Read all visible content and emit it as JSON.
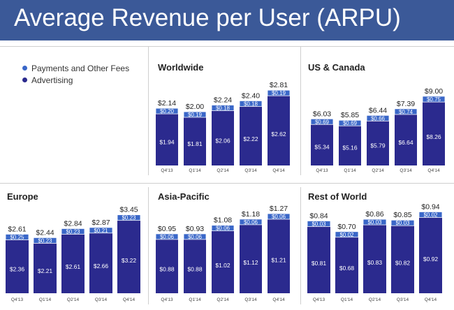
{
  "header": {
    "title": "Average Revenue per User (ARPU)"
  },
  "colors": {
    "header": "#3b5998",
    "advertising": "#2b2a8e",
    "payments": "#3a67c8",
    "text": "#222222"
  },
  "legend": {
    "items": [
      {
        "label": "Payments and Other Fees",
        "color": "#3a67c8"
      },
      {
        "label": "Advertising",
        "color": "#2b2a8e"
      }
    ]
  },
  "chart_data": [
    {
      "type": "bar",
      "stacked": true,
      "title": "Worldwide",
      "categories": [
        "Q4'13",
        "Q1'14",
        "Q2'14",
        "Q3'14",
        "Q4'14"
      ],
      "series": [
        {
          "name": "Advertising",
          "values": [
            1.94,
            1.81,
            2.06,
            2.22,
            2.62
          ],
          "labels": [
            "$1.94",
            "$1.81",
            "$2.06",
            "$2.22",
            "$2.62"
          ]
        },
        {
          "name": "Payments and Other Fees",
          "values": [
            0.2,
            0.19,
            0.18,
            0.18,
            0.19
          ],
          "labels": [
            "$0.20",
            "$0.19",
            "$0.18",
            "$0.18",
            "$0.19"
          ]
        }
      ],
      "totals": [
        "$2.14",
        "$2.00",
        "$2.24",
        "$2.40",
        "$2.81"
      ]
    },
    {
      "type": "bar",
      "stacked": true,
      "title": "US & Canada",
      "categories": [
        "Q4'13",
        "Q1'14",
        "Q2'14",
        "Q3'14",
        "Q4'14"
      ],
      "series": [
        {
          "name": "Advertising",
          "values": [
            5.34,
            5.16,
            5.79,
            6.64,
            8.26
          ],
          "labels": [
            "$5.34",
            "$5.16",
            "$5.79",
            "$6.64",
            "$8.26"
          ]
        },
        {
          "name": "Payments and Other Fees",
          "values": [
            0.69,
            0.69,
            0.66,
            0.74,
            0.75
          ],
          "labels": [
            "$0.69",
            "$0.69",
            "$0.66",
            "$0.74",
            "$0.75"
          ]
        }
      ],
      "totals": [
        "$6.03",
        "$5.85",
        "$6.44",
        "$7.39",
        "$9.00"
      ]
    },
    {
      "type": "bar",
      "stacked": true,
      "title": "Europe",
      "categories": [
        "Q4'13",
        "Q1'14",
        "Q2'14",
        "Q3'14",
        "Q4'14"
      ],
      "series": [
        {
          "name": "Advertising",
          "values": [
            2.36,
            2.21,
            2.61,
            2.66,
            3.22
          ],
          "labels": [
            "$2.36",
            "$2.21",
            "$2.61",
            "$2.66",
            "$3.22"
          ]
        },
        {
          "name": "Payments and Other Fees",
          "values": [
            0.25,
            0.23,
            0.23,
            0.21,
            0.23
          ],
          "labels": [
            "$0.25",
            "$0.23",
            "$0.23",
            "$0.21",
            "$0.23"
          ]
        }
      ],
      "totals": [
        "$2.61",
        "$2.44",
        "$2.84",
        "$2.87",
        "$3.45"
      ]
    },
    {
      "type": "bar",
      "stacked": true,
      "title": "Asia-Pacific",
      "categories": [
        "Q4'13",
        "Q1'14",
        "Q2'14",
        "Q3'14",
        "Q4'14"
      ],
      "series": [
        {
          "name": "Advertising",
          "values": [
            0.88,
            0.88,
            1.02,
            1.12,
            1.21
          ],
          "labels": [
            "$0.88",
            "$0.88",
            "$1.02",
            "$1.12",
            "$1.21"
          ]
        },
        {
          "name": "Payments and Other Fees",
          "values": [
            0.06,
            0.06,
            0.06,
            0.06,
            0.06
          ],
          "labels": [
            "$0.06",
            "$0.06",
            "$0.06",
            "$0.06",
            "$0.06"
          ]
        }
      ],
      "totals": [
        "$0.95",
        "$0.93",
        "$1.08",
        "$1.18",
        "$1.27"
      ]
    },
    {
      "type": "bar",
      "stacked": true,
      "title": "Rest of World",
      "categories": [
        "Q4'13",
        "Q1'14",
        "Q2'14",
        "Q3'14",
        "Q4'14"
      ],
      "series": [
        {
          "name": "Advertising",
          "values": [
            0.81,
            0.68,
            0.83,
            0.82,
            0.92
          ],
          "labels": [
            "$0.81",
            "$0.68",
            "$0.83",
            "$0.82",
            "$0.92"
          ]
        },
        {
          "name": "Payments and Other Fees",
          "values": [
            0.03,
            0.02,
            0.03,
            0.03,
            0.02
          ],
          "labels": [
            "$0.03",
            "$0.02",
            "$0.03",
            "$0.03",
            "$0.02"
          ]
        }
      ],
      "totals": [
        "$0.84",
        "$0.70",
        "$0.86",
        "$0.85",
        "$0.94"
      ]
    }
  ]
}
